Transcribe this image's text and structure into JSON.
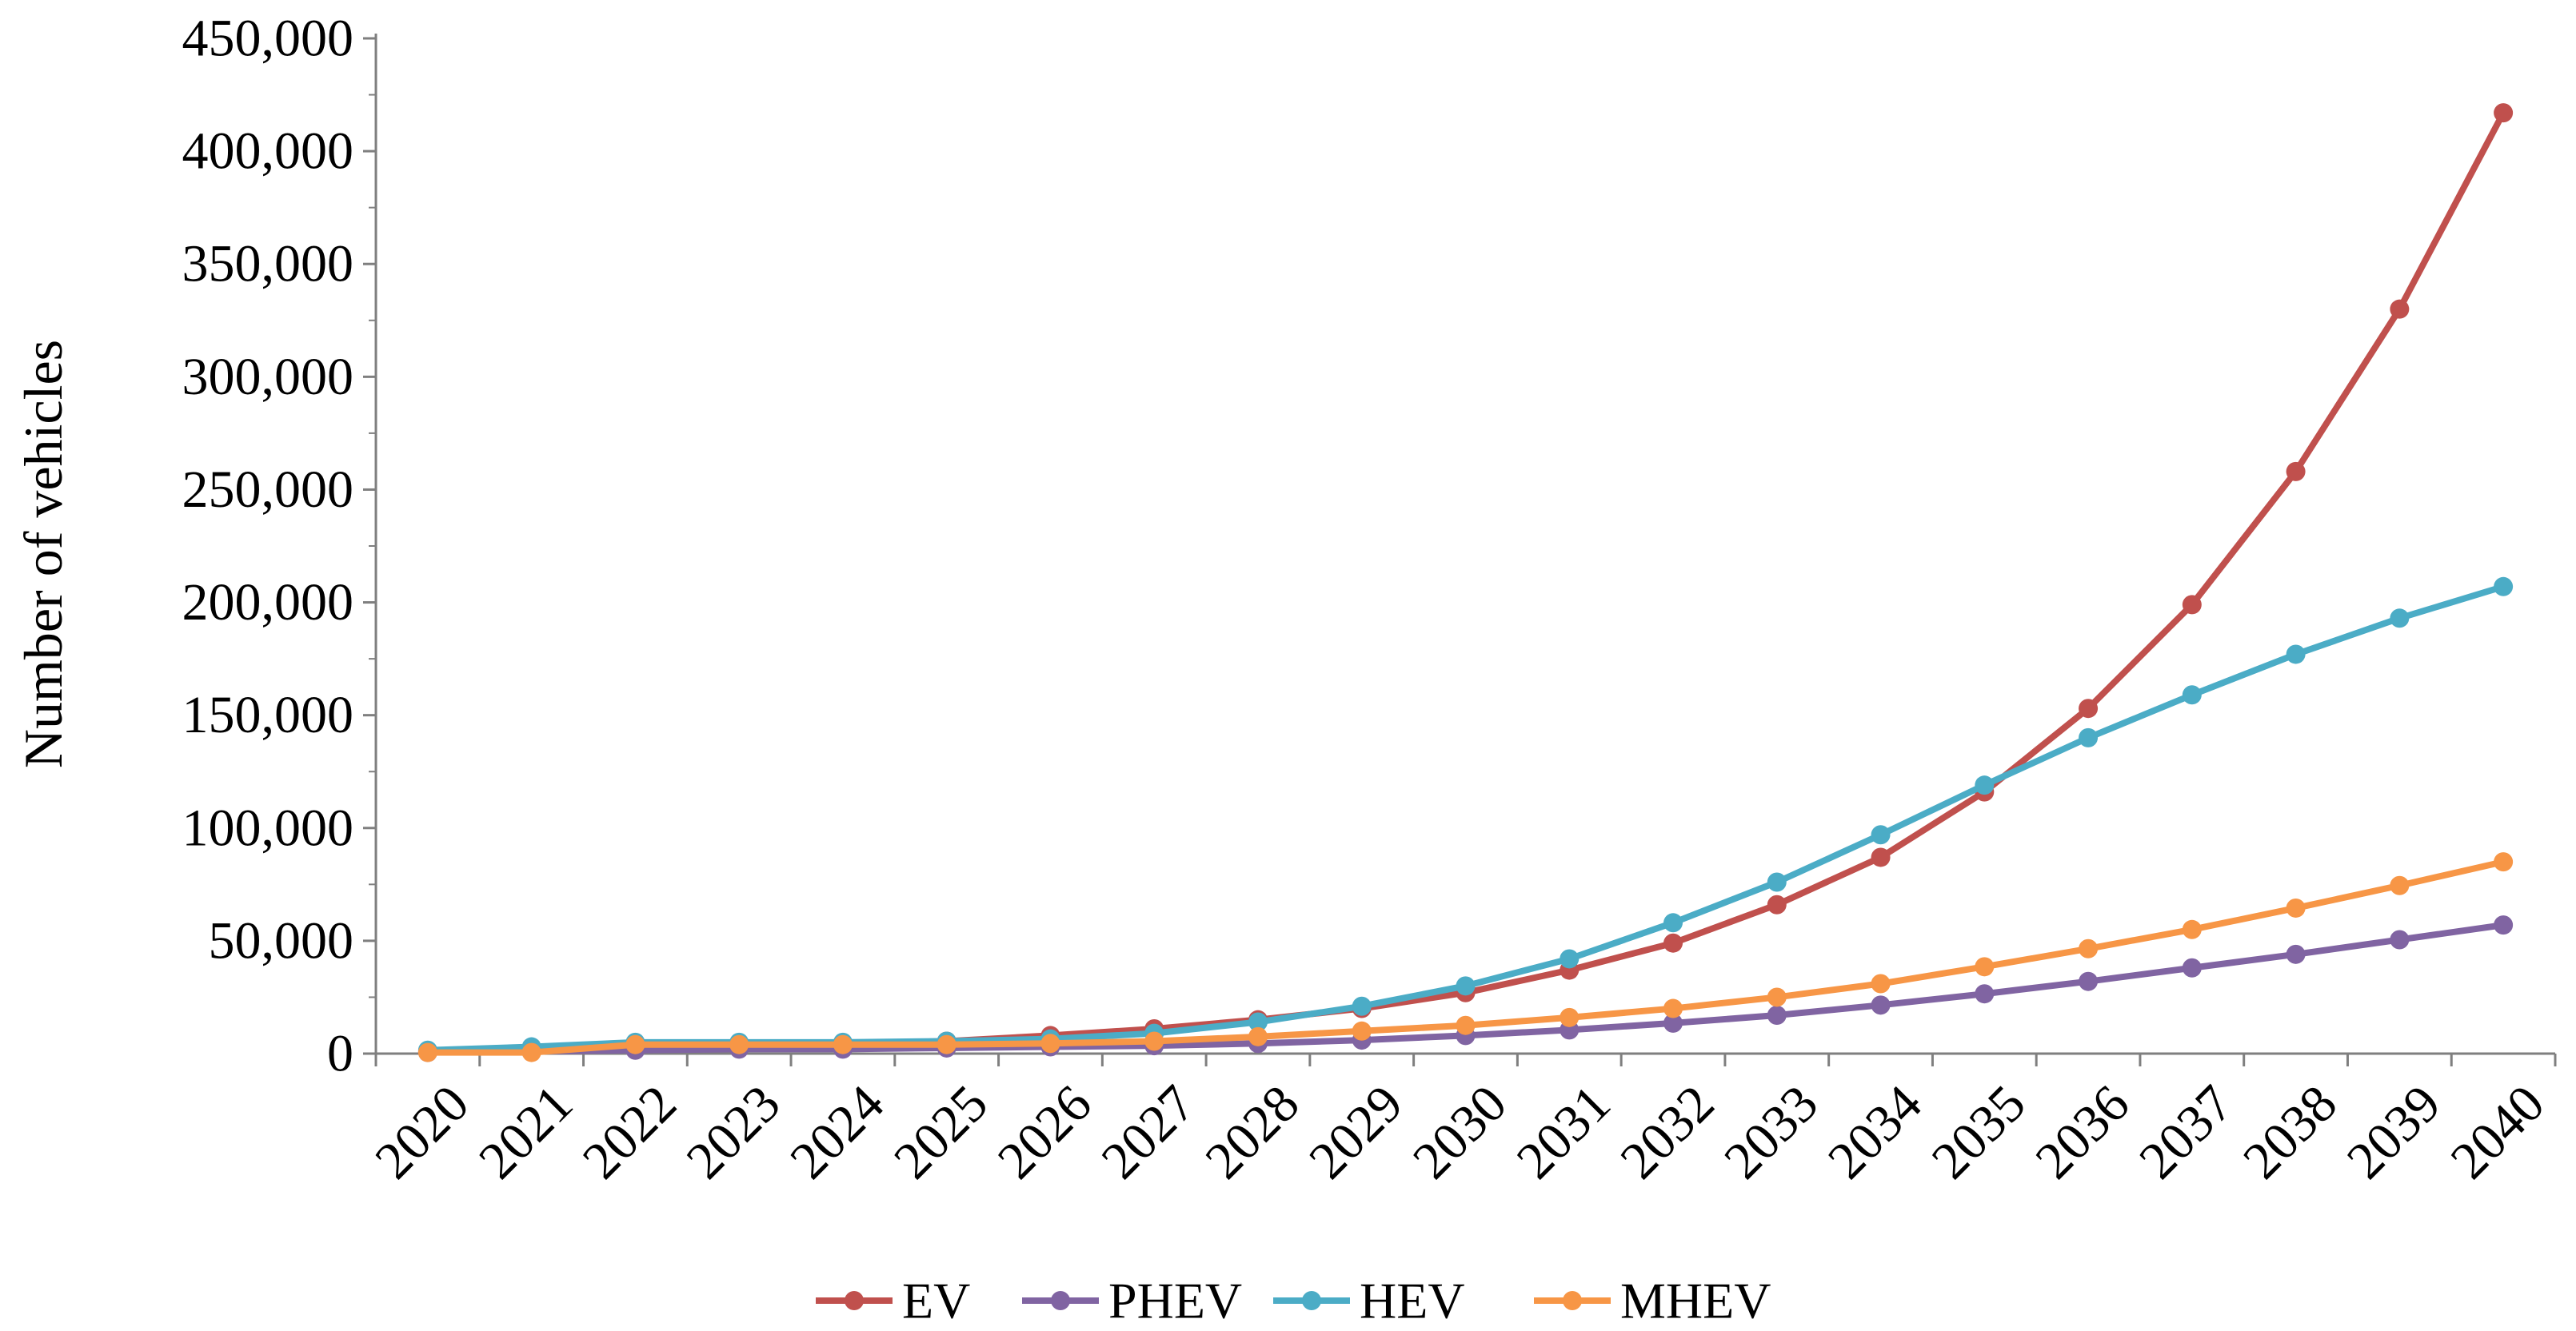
{
  "chart_data": {
    "type": "line",
    "title": "",
    "xlabel": "",
    "ylabel": "Number of vehicles",
    "categories": [
      "2020",
      "2021",
      "2022",
      "2023",
      "2024",
      "2025",
      "2026",
      "2027",
      "2028",
      "2029",
      "2030",
      "2031",
      "2032",
      "2033",
      "2034",
      "2035",
      "2036",
      "2037",
      "2038",
      "2039",
      "2040"
    ],
    "ylim": [
      0,
      450000
    ],
    "yticks": [
      0,
      50000,
      100000,
      150000,
      200000,
      250000,
      300000,
      350000,
      400000,
      450000
    ],
    "ytick_labels": [
      "0",
      "50,000",
      "100,000",
      "150,000",
      "200,000",
      "250,000",
      "300,000",
      "350,000",
      "400,000",
      "450,000"
    ],
    "grid": false,
    "legend_position": "bottom",
    "series": [
      {
        "name": "EV",
        "color": "#C0504D",
        "values": [
          1000,
          2000,
          3500,
          4000,
          4500,
          5500,
          8000,
          11000,
          15000,
          20000,
          27000,
          37000,
          49000,
          66000,
          87000,
          116000,
          153000,
          199000,
          258000,
          330000,
          417000
        ]
      },
      {
        "name": "PHEV",
        "color": "#8064A2",
        "values": [
          500,
          1000,
          1500,
          2000,
          2000,
          2500,
          3000,
          3500,
          4500,
          6000,
          8000,
          10500,
          13500,
          17000,
          21500,
          26500,
          32000,
          38000,
          44000,
          50500,
          57000
        ]
      },
      {
        "name": "HEV",
        "color": "#4BACC6",
        "values": [
          1500,
          3000,
          5000,
          5000,
          5000,
          5500,
          6500,
          9000,
          14000,
          21000,
          30000,
          42000,
          58000,
          76000,
          97000,
          119000,
          140000,
          159000,
          177000,
          193000,
          207000
        ]
      },
      {
        "name": "MHEV",
        "color": "#F79646",
        "values": [
          500,
          500,
          4000,
          4000,
          4000,
          4000,
          4500,
          5500,
          7500,
          10000,
          12500,
          16000,
          20000,
          25000,
          31000,
          38500,
          46500,
          55000,
          64500,
          74500,
          85000
        ]
      }
    ]
  }
}
